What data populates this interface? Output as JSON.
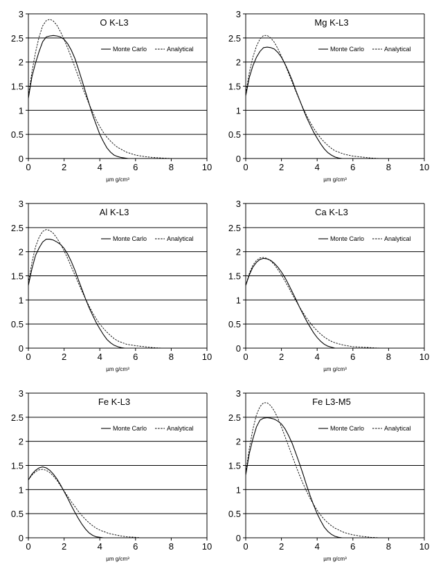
{
  "chart_data": [
    {
      "type": "line",
      "title": "O K-L3",
      "xlabel": "µm g/cm³",
      "ylabel": "",
      "xlim": [
        0,
        10
      ],
      "ylim": [
        0,
        3
      ],
      "xticks": [
        "0",
        "2",
        "4",
        "6",
        "8",
        "10"
      ],
      "yticks": [
        "0",
        "0.5",
        "1",
        "1.5",
        "2",
        "2.5",
        "3"
      ],
      "grid": "horizontal",
      "legend": "right",
      "series": [
        {
          "name": "Monte Carlo",
          "style": "solid",
          "x": [
            0,
            0.2,
            0.4,
            0.6,
            0.8,
            1.0,
            1.2,
            1.4,
            1.6,
            1.8,
            2.0,
            2.2,
            2.4,
            2.6,
            2.8,
            3.0,
            3.2,
            3.4,
            3.6,
            3.8,
            4.0,
            4.2,
            4.4,
            4.6,
            4.8,
            5.0,
            5.2,
            5.4,
            5.6
          ],
          "y": [
            1.25,
            1.7,
            1.98,
            2.22,
            2.42,
            2.52,
            2.54,
            2.55,
            2.54,
            2.52,
            2.47,
            2.38,
            2.25,
            2.08,
            1.86,
            1.62,
            1.38,
            1.14,
            0.9,
            0.7,
            0.5,
            0.35,
            0.22,
            0.13,
            0.07,
            0.04,
            0.02,
            0.01,
            0.0
          ]
        },
        {
          "name": "Analytical",
          "style": "dashed",
          "x": [
            0,
            0.2,
            0.4,
            0.6,
            0.8,
            1.0,
            1.2,
            1.4,
            1.6,
            1.8,
            2.0,
            2.2,
            2.4,
            2.6,
            2.8,
            3.0,
            3.2,
            3.4,
            3.6,
            3.8,
            4.0,
            4.2,
            4.4,
            4.6,
            4.8,
            5.0,
            5.5,
            6.0,
            6.5,
            7.0,
            7.5,
            8.0,
            8.5
          ],
          "y": [
            1.3,
            1.8,
            2.2,
            2.52,
            2.75,
            2.86,
            2.89,
            2.85,
            2.76,
            2.63,
            2.47,
            2.29,
            2.1,
            1.9,
            1.7,
            1.5,
            1.31,
            1.13,
            0.96,
            0.8,
            0.66,
            0.54,
            0.44,
            0.36,
            0.29,
            0.23,
            0.13,
            0.07,
            0.04,
            0.02,
            0.01,
            0.0,
            0.0
          ]
        }
      ]
    },
    {
      "type": "line",
      "title": "Mg K-L3",
      "xlabel": "µm g/cm³",
      "ylabel": "",
      "xlim": [
        0,
        10
      ],
      "ylim": [
        0,
        3
      ],
      "xticks": [
        "0",
        "2",
        "4",
        "6",
        "8",
        "10"
      ],
      "yticks": [
        "0",
        "0.5",
        "1",
        "1.5",
        "2",
        "2.5",
        "3"
      ],
      "grid": "horizontal",
      "legend": "right",
      "series": [
        {
          "name": "Monte Carlo",
          "style": "solid",
          "x": [
            0,
            0.2,
            0.4,
            0.6,
            0.8,
            1.0,
            1.2,
            1.4,
            1.6,
            1.8,
            2.0,
            2.2,
            2.4,
            2.6,
            2.8,
            3.0,
            3.2,
            3.4,
            3.6,
            3.8,
            4.0,
            4.2,
            4.4,
            4.6,
            4.8,
            5.0,
            5.2,
            5.4
          ],
          "y": [
            1.3,
            1.68,
            1.92,
            2.1,
            2.22,
            2.3,
            2.31,
            2.3,
            2.27,
            2.2,
            2.1,
            1.96,
            1.8,
            1.62,
            1.42,
            1.23,
            1.04,
            0.86,
            0.7,
            0.55,
            0.42,
            0.3,
            0.2,
            0.12,
            0.07,
            0.03,
            0.01,
            0.0
          ]
        },
        {
          "name": "Analytical",
          "style": "dashed",
          "x": [
            0,
            0.2,
            0.4,
            0.6,
            0.8,
            1.0,
            1.2,
            1.4,
            1.6,
            1.8,
            2.0,
            2.2,
            2.4,
            2.6,
            2.8,
            3.0,
            3.2,
            3.4,
            3.6,
            3.8,
            4.0,
            4.2,
            4.4,
            4.6,
            4.8,
            5.0,
            5.5,
            6.0,
            6.5,
            7.0,
            7.5,
            8.0
          ],
          "y": [
            1.35,
            1.78,
            2.1,
            2.33,
            2.48,
            2.55,
            2.55,
            2.5,
            2.41,
            2.28,
            2.12,
            1.95,
            1.77,
            1.58,
            1.4,
            1.22,
            1.05,
            0.9,
            0.76,
            0.63,
            0.52,
            0.42,
            0.34,
            0.27,
            0.21,
            0.16,
            0.09,
            0.05,
            0.03,
            0.01,
            0.0,
            0.0
          ]
        }
      ]
    },
    {
      "type": "line",
      "title": "Al K-L3",
      "xlabel": "µm g/cm³",
      "ylabel": "",
      "xlim": [
        0,
        10
      ],
      "ylim": [
        0,
        3
      ],
      "xticks": [
        "0",
        "2",
        "4",
        "6",
        "8",
        "10"
      ],
      "yticks": [
        "0",
        "0.5",
        "1",
        "1.5",
        "2",
        "2.5",
        "3"
      ],
      "grid": "horizontal",
      "legend": "right",
      "series": [
        {
          "name": "Monte Carlo",
          "style": "solid",
          "x": [
            0,
            0.2,
            0.4,
            0.6,
            0.8,
            1.0,
            1.2,
            1.4,
            1.6,
            1.8,
            2.0,
            2.2,
            2.4,
            2.6,
            2.8,
            3.0,
            3.2,
            3.4,
            3.6,
            3.8,
            4.0,
            4.2,
            4.4,
            4.6,
            4.8,
            5.0,
            5.2,
            5.4
          ],
          "y": [
            1.3,
            1.65,
            1.92,
            2.08,
            2.2,
            2.26,
            2.26,
            2.24,
            2.2,
            2.15,
            2.07,
            1.95,
            1.8,
            1.62,
            1.42,
            1.22,
            1.02,
            0.84,
            0.68,
            0.53,
            0.4,
            0.28,
            0.18,
            0.11,
            0.06,
            0.03,
            0.01,
            0.0
          ]
        },
        {
          "name": "Analytical",
          "style": "dashed",
          "x": [
            0,
            0.2,
            0.4,
            0.6,
            0.8,
            1.0,
            1.2,
            1.4,
            1.6,
            1.8,
            2.0,
            2.2,
            2.4,
            2.6,
            2.8,
            3.0,
            3.2,
            3.4,
            3.6,
            3.8,
            4.0,
            4.2,
            4.4,
            4.6,
            4.8,
            5.0,
            5.5,
            6.0,
            6.5,
            7.0,
            7.5,
            8.0
          ],
          "y": [
            1.35,
            1.78,
            2.1,
            2.3,
            2.42,
            2.46,
            2.44,
            2.38,
            2.28,
            2.16,
            2.02,
            1.86,
            1.69,
            1.52,
            1.35,
            1.18,
            1.02,
            0.87,
            0.73,
            0.61,
            0.5,
            0.41,
            0.33,
            0.26,
            0.2,
            0.15,
            0.08,
            0.05,
            0.03,
            0.01,
            0.0,
            0.0
          ]
        }
      ]
    },
    {
      "type": "line",
      "title": "Ca K-L3",
      "xlabel": "µm g/cm³",
      "ylabel": "",
      "xlim": [
        0,
        10
      ],
      "ylim": [
        0,
        3
      ],
      "xticks": [
        "0",
        "2",
        "4",
        "6",
        "8",
        "10"
      ],
      "yticks": [
        "0",
        "0.5",
        "1",
        "1.5",
        "2",
        "2.5",
        "3"
      ],
      "grid": "horizontal",
      "legend": "right",
      "series": [
        {
          "name": "Monte Carlo",
          "style": "solid",
          "x": [
            0,
            0.2,
            0.4,
            0.6,
            0.8,
            1.0,
            1.2,
            1.4,
            1.6,
            1.8,
            2.0,
            2.2,
            2.4,
            2.6,
            2.8,
            3.0,
            3.2,
            3.4,
            3.6,
            3.8,
            4.0,
            4.2,
            4.4,
            4.6,
            4.8,
            5.0
          ],
          "y": [
            1.3,
            1.52,
            1.68,
            1.78,
            1.84,
            1.86,
            1.85,
            1.82,
            1.76,
            1.68,
            1.58,
            1.46,
            1.32,
            1.17,
            1.02,
            0.86,
            0.71,
            0.57,
            0.44,
            0.32,
            0.22,
            0.14,
            0.08,
            0.04,
            0.02,
            0.0
          ]
        },
        {
          "name": "Analytical",
          "style": "dashed",
          "x": [
            0,
            0.2,
            0.4,
            0.6,
            0.8,
            1.0,
            1.2,
            1.4,
            1.6,
            1.8,
            2.0,
            2.2,
            2.4,
            2.6,
            2.8,
            3.0,
            3.2,
            3.4,
            3.6,
            3.8,
            4.0,
            4.2,
            4.4,
            4.6,
            4.8,
            5.0,
            5.5,
            6.0,
            6.5,
            7.0,
            7.5
          ],
          "y": [
            1.3,
            1.55,
            1.72,
            1.82,
            1.87,
            1.88,
            1.86,
            1.81,
            1.73,
            1.63,
            1.52,
            1.39,
            1.26,
            1.12,
            0.99,
            0.86,
            0.74,
            0.63,
            0.53,
            0.44,
            0.36,
            0.29,
            0.23,
            0.18,
            0.14,
            0.11,
            0.06,
            0.03,
            0.02,
            0.01,
            0.0
          ]
        }
      ]
    },
    {
      "type": "line",
      "title": "Fe K-L3",
      "xlabel": "µm g/cm³",
      "ylabel": "",
      "xlim": [
        0,
        10
      ],
      "ylim": [
        0,
        3
      ],
      "xticks": [
        "0",
        "2",
        "4",
        "6",
        "8",
        "10"
      ],
      "yticks": [
        "0",
        "0.5",
        "1",
        "1.5",
        "2",
        "2.5",
        "3"
      ],
      "grid": "horizontal",
      "legend": "right",
      "series": [
        {
          "name": "Monte Carlo",
          "style": "solid",
          "x": [
            0,
            0.2,
            0.4,
            0.6,
            0.8,
            1.0,
            1.2,
            1.4,
            1.6,
            1.8,
            2.0,
            2.2,
            2.4,
            2.6,
            2.8,
            3.0,
            3.2,
            3.4,
            3.6,
            3.8,
            4.0,
            4.2
          ],
          "y": [
            1.2,
            1.32,
            1.4,
            1.45,
            1.47,
            1.45,
            1.4,
            1.32,
            1.22,
            1.1,
            0.96,
            0.82,
            0.67,
            0.53,
            0.4,
            0.28,
            0.18,
            0.1,
            0.05,
            0.02,
            0.01,
            0.0
          ]
        },
        {
          "name": "Analytical",
          "style": "dashed",
          "x": [
            0,
            0.2,
            0.4,
            0.6,
            0.8,
            1.0,
            1.2,
            1.4,
            1.6,
            1.8,
            2.0,
            2.2,
            2.4,
            2.6,
            2.8,
            3.0,
            3.2,
            3.4,
            3.6,
            3.8,
            4.0,
            4.5,
            5.0,
            5.5,
            6.0,
            6.3
          ],
          "y": [
            1.2,
            1.3,
            1.37,
            1.41,
            1.42,
            1.4,
            1.35,
            1.28,
            1.19,
            1.08,
            0.97,
            0.86,
            0.75,
            0.65,
            0.55,
            0.46,
            0.38,
            0.31,
            0.25,
            0.2,
            0.16,
            0.09,
            0.05,
            0.02,
            0.01,
            0.0
          ]
        }
      ]
    },
    {
      "type": "line",
      "title": "Fe L3-M5",
      "xlabel": "µm g/cm³",
      "ylabel": "",
      "xlim": [
        0,
        10
      ],
      "ylim": [
        0,
        3
      ],
      "xticks": [
        "0",
        "2",
        "4",
        "6",
        "8",
        "10"
      ],
      "yticks": [
        "0",
        "0.5",
        "1",
        "1.5",
        "2",
        "2.5",
        "3"
      ],
      "grid": "horizontal",
      "legend": "right",
      "series": [
        {
          "name": "Monte Carlo",
          "style": "solid",
          "x": [
            0,
            0.2,
            0.4,
            0.6,
            0.8,
            1.0,
            1.2,
            1.4,
            1.6,
            1.8,
            2.0,
            2.2,
            2.4,
            2.6,
            2.8,
            3.0,
            3.2,
            3.4,
            3.6,
            3.8,
            4.0,
            4.2,
            4.4,
            4.6,
            4.8,
            5.0,
            5.2,
            5.4,
            5.6
          ],
          "y": [
            1.3,
            1.75,
            2.05,
            2.3,
            2.44,
            2.48,
            2.49,
            2.48,
            2.46,
            2.42,
            2.36,
            2.26,
            2.12,
            1.96,
            1.76,
            1.55,
            1.33,
            1.1,
            0.88,
            0.68,
            0.5,
            0.35,
            0.22,
            0.13,
            0.07,
            0.03,
            0.01,
            0.0,
            0.0
          ]
        },
        {
          "name": "Analytical",
          "style": "dashed",
          "x": [
            0,
            0.2,
            0.4,
            0.6,
            0.8,
            1.0,
            1.2,
            1.4,
            1.6,
            1.8,
            2.0,
            2.2,
            2.4,
            2.6,
            2.8,
            3.0,
            3.2,
            3.4,
            3.6,
            3.8,
            4.0,
            4.2,
            4.4,
            4.6,
            4.8,
            5.0,
            5.5,
            6.0,
            6.5,
            7.0,
            7.5,
            8.0
          ],
          "y": [
            1.35,
            1.85,
            2.25,
            2.55,
            2.72,
            2.8,
            2.8,
            2.74,
            2.63,
            2.48,
            2.3,
            2.1,
            1.9,
            1.7,
            1.5,
            1.31,
            1.13,
            0.97,
            0.82,
            0.69,
            0.57,
            0.47,
            0.38,
            0.31,
            0.25,
            0.2,
            0.11,
            0.06,
            0.03,
            0.01,
            0.0,
            0.0
          ]
        }
      ]
    }
  ]
}
